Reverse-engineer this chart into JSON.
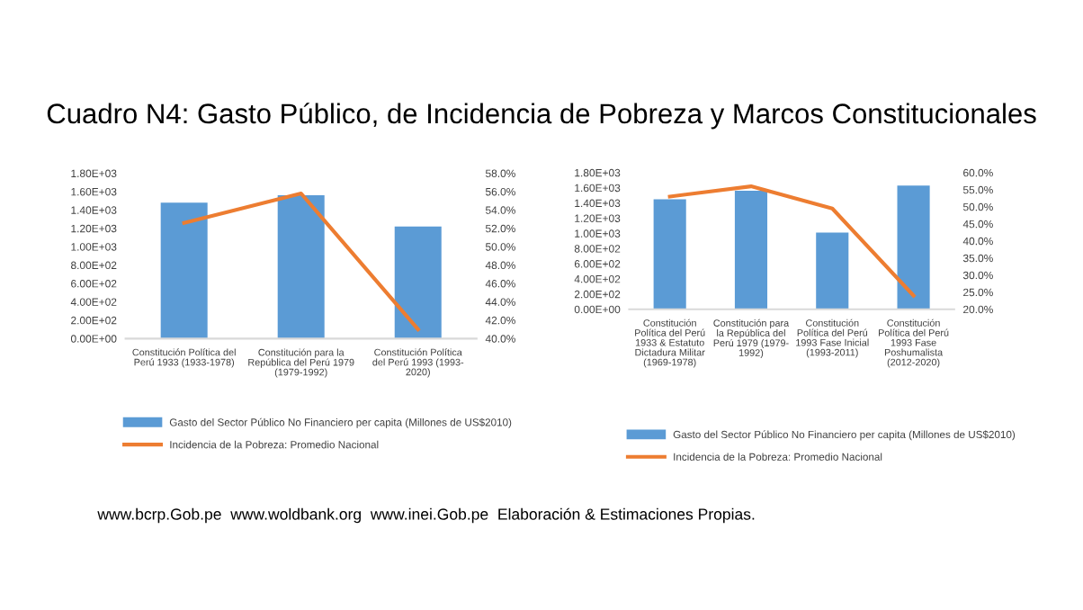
{
  "chart_data": [
    {
      "type": "bar",
      "title": "Cuadro N4: Gasto Público, de Incidencia de Pobreza y Marcos Constitucionales",
      "categories": [
        "Constitución Política del\nPerú 1933 (1933-1978)",
        "Constitución para la\nRepública del Perú 1979\n(1979-1992)",
        "Constitución Política\ndel Perú 1993 (1993-\n2020)"
      ],
      "series": [
        {
          "name": "Gasto del Sector Público No Financiero per capita (Millones de US$2010)",
          "color": "#5b9bd5",
          "values": [
            1480,
            1560,
            1220
          ]
        },
        {
          "name": "Incidencia de la Pobreza: Promedio Nacional",
          "type": "line",
          "axis": "y2",
          "color": "#ed7d31",
          "values": [
            52.6,
            55.8,
            41.0
          ]
        }
      ],
      "ylim": [
        0,
        1800
      ],
      "yticks": [
        {
          "value": 0,
          "label": "0.00E+00"
        },
        {
          "value": 200,
          "label": "2.00E+02"
        },
        {
          "value": 400,
          "label": "4.00E+02"
        },
        {
          "value": 600,
          "label": "6.00E+02"
        },
        {
          "value": 800,
          "label": "8.00E+02"
        },
        {
          "value": 1000,
          "label": "1.00E+03"
        },
        {
          "value": 1200,
          "label": "1.20E+03"
        },
        {
          "value": 1400,
          "label": "1.40E+03"
        },
        {
          "value": 1600,
          "label": "1.60E+03"
        },
        {
          "value": 1800,
          "label": "1.80E+03"
        }
      ],
      "y2lim": [
        40,
        58
      ],
      "y2ticks": [
        {
          "value": 40,
          "label": "40.0%"
        },
        {
          "value": 42,
          "label": "42.0%"
        },
        {
          "value": 44,
          "label": "44.0%"
        },
        {
          "value": 46,
          "label": "46.0%"
        },
        {
          "value": 48,
          "label": "48.0%"
        },
        {
          "value": 50,
          "label": "50.0%"
        },
        {
          "value": 52,
          "label": "52.0%"
        },
        {
          "value": 54,
          "label": "54.0%"
        },
        {
          "value": 56,
          "label": "56.0%"
        },
        {
          "value": 58,
          "label": "58.0%"
        }
      ],
      "grid": false,
      "legend": "bottom",
      "marker": "none"
    },
    {
      "type": "bar",
      "categories": [
        "Constitución\nPolítica del Perú\n1933 & Estatuto\nDictadura Militar\n(1969-1978)",
        "Constitución para\nla República del\nPerú 1979 (1979-\n1992)",
        "Constitución\nPolítica del Perú\n1993 Fase Inicial\n(1993-2011)",
        "Constitución\nPolítica del Perú\n1993 Fase\nPoshumalista\n(2012-2020)"
      ],
      "series": [
        {
          "name": "Gasto del Sector Público No Financiero per capita (Millones de US$2010)",
          "color": "#5b9bd5",
          "values": [
            1450,
            1560,
            1010,
            1630
          ]
        },
        {
          "name": "Incidencia de la Pobreza: Promedio Nacional",
          "type": "line",
          "axis": "y2",
          "color": "#ed7d31",
          "values": [
            53.0,
            56.0,
            49.5,
            24.0
          ]
        }
      ],
      "ylim": [
        0,
        1800
      ],
      "yticks": [
        {
          "value": 0,
          "label": "0.00E+00"
        },
        {
          "value": 200,
          "label": "2.00E+02"
        },
        {
          "value": 400,
          "label": "4.00E+02"
        },
        {
          "value": 600,
          "label": "6.00E+02"
        },
        {
          "value": 800,
          "label": "8.00E+02"
        },
        {
          "value": 1000,
          "label": "1.00E+03"
        },
        {
          "value": 1200,
          "label": "1.20E+03"
        },
        {
          "value": 1400,
          "label": "1.40E+03"
        },
        {
          "value": 1600,
          "label": "1.60E+03"
        },
        {
          "value": 1800,
          "label": "1.80E+03"
        }
      ],
      "y2lim": [
        20,
        60
      ],
      "y2ticks": [
        {
          "value": 20,
          "label": "20.0%"
        },
        {
          "value": 25,
          "label": "25.0%"
        },
        {
          "value": 30,
          "label": "30.0%"
        },
        {
          "value": 35,
          "label": "35.0%"
        },
        {
          "value": 40,
          "label": "40.0%"
        },
        {
          "value": 45,
          "label": "45.0%"
        },
        {
          "value": 50,
          "label": "50.0%"
        },
        {
          "value": 55,
          "label": "55.0%"
        },
        {
          "value": 60,
          "label": "60.0%"
        }
      ],
      "grid": false,
      "legend": "bottom",
      "marker": "none",
      "annotations": [
        "www.bcrp.Gob.pe  www.woldbank.org  www.inei.Gob.pe  Elaboración & Estimaciones Propias."
      ]
    }
  ]
}
